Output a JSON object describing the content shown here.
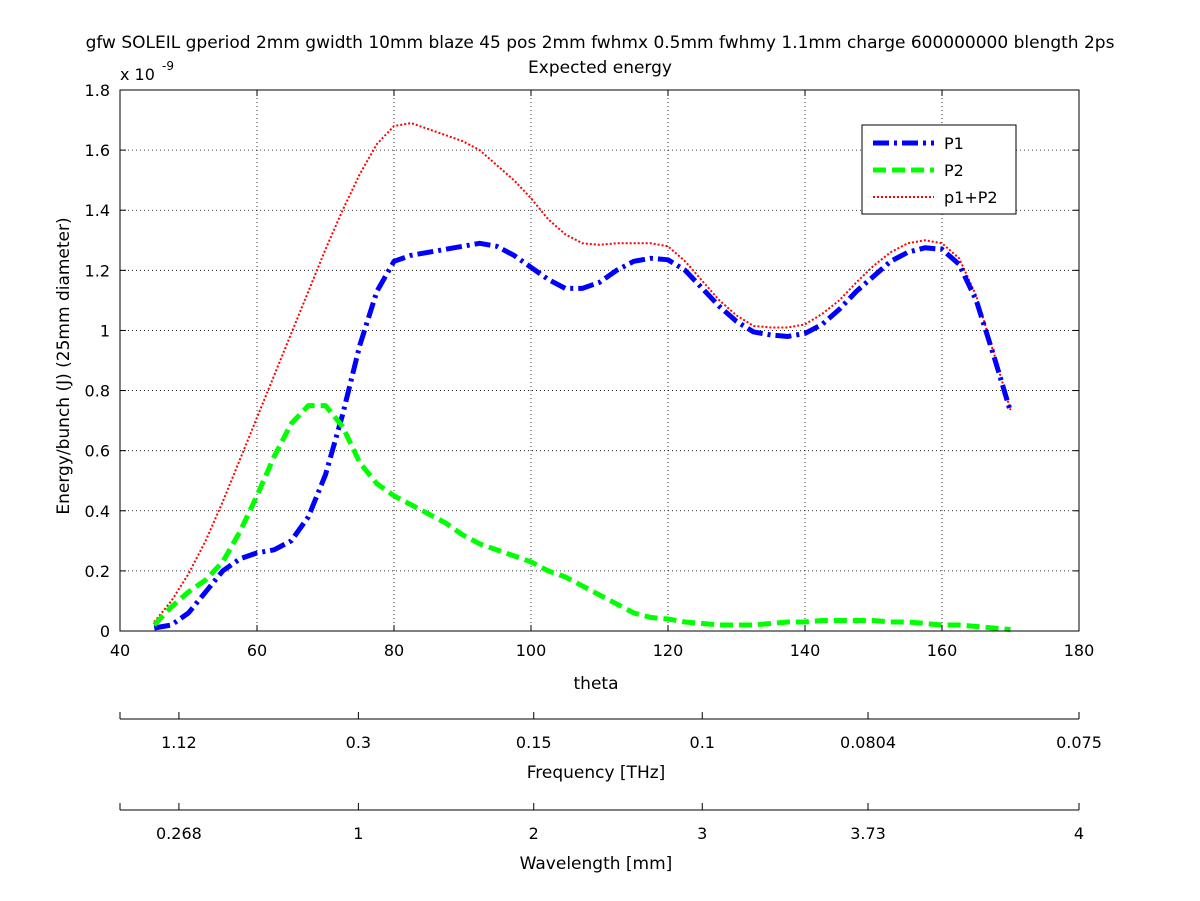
{
  "chart_data": {
    "type": "line",
    "title": "gfw SOLEIL gperiod 2mm gwidth 10mm blaze 45 pos 2mm fwhmx 0.5mm fwhmy 1.1mm charge 600000000 blength 2ps",
    "subtitle": "Expected energy",
    "xlabel": "theta",
    "ylabel": "Energy/bunch (J) (25mm diameter)",
    "y_exponent_label": "x 10",
    "y_exponent_power": "-9",
    "xlim": [
      40,
      180
    ],
    "ylim": [
      0,
      1.8
    ],
    "x_ticks": [
      40,
      60,
      80,
      100,
      120,
      140,
      160,
      180
    ],
    "x_tick_labels": [
      "40",
      "60",
      "80",
      "100",
      "120",
      "140",
      "160",
      "180"
    ],
    "y_ticks": [
      0,
      0.2,
      0.4,
      0.6,
      0.8,
      1,
      1.2,
      1.4,
      1.6,
      1.8
    ],
    "y_tick_labels": [
      "0",
      "0.2",
      "0.4",
      "0.6",
      "0.8",
      "1",
      "1.2",
      "1.4",
      "1.6",
      "1.8"
    ],
    "grid": true,
    "legend_position": "top-right",
    "x": [
      45,
      47.5,
      50,
      52.5,
      55,
      57.5,
      60,
      62.5,
      65,
      67.5,
      70,
      72.5,
      75,
      77.5,
      80,
      82.5,
      85,
      87.5,
      90,
      92.5,
      95,
      97.5,
      100,
      102.5,
      105,
      107.5,
      110,
      112.5,
      115,
      117.5,
      120,
      122.5,
      125,
      127.5,
      130,
      132.5,
      135,
      137.5,
      140,
      142.5,
      145,
      147.5,
      150,
      152.5,
      155,
      157.5,
      160,
      162.5,
      165,
      167.5,
      170
    ],
    "series": [
      {
        "name": "P1",
        "color": "#0000ff",
        "style": "dash-dot",
        "values": [
          0.01,
          0.02,
          0.06,
          0.13,
          0.2,
          0.24,
          0.26,
          0.27,
          0.3,
          0.38,
          0.52,
          0.72,
          0.95,
          1.13,
          1.23,
          1.25,
          1.26,
          1.27,
          1.28,
          1.29,
          1.28,
          1.25,
          1.21,
          1.17,
          1.14,
          1.14,
          1.16,
          1.2,
          1.23,
          1.24,
          1.235,
          1.2,
          1.14,
          1.08,
          1.03,
          0.995,
          0.985,
          0.98,
          0.99,
          1.02,
          1.07,
          1.13,
          1.18,
          1.23,
          1.26,
          1.275,
          1.27,
          1.22,
          1.1,
          0.92,
          0.73
        ]
      },
      {
        "name": "P2",
        "color": "#00ff00",
        "style": "dashed",
        "values": [
          0.02,
          0.08,
          0.13,
          0.17,
          0.23,
          0.33,
          0.45,
          0.58,
          0.69,
          0.75,
          0.75,
          0.68,
          0.56,
          0.49,
          0.45,
          0.42,
          0.39,
          0.36,
          0.32,
          0.29,
          0.27,
          0.25,
          0.23,
          0.2,
          0.18,
          0.15,
          0.12,
          0.09,
          0.06,
          0.045,
          0.04,
          0.03,
          0.025,
          0.02,
          0.02,
          0.02,
          0.025,
          0.03,
          0.03,
          0.035,
          0.035,
          0.035,
          0.035,
          0.03,
          0.03,
          0.025,
          0.02,
          0.02,
          0.015,
          0.01,
          0.005
        ]
      },
      {
        "name": "p1+P2",
        "color": "#ff0000",
        "style": "dotted",
        "values": [
          0.03,
          0.1,
          0.19,
          0.3,
          0.43,
          0.57,
          0.71,
          0.85,
          0.99,
          1.13,
          1.27,
          1.4,
          1.52,
          1.62,
          1.68,
          1.69,
          1.67,
          1.65,
          1.63,
          1.6,
          1.55,
          1.5,
          1.44,
          1.37,
          1.32,
          1.29,
          1.285,
          1.29,
          1.29,
          1.29,
          1.28,
          1.23,
          1.165,
          1.1,
          1.05,
          1.015,
          1.01,
          1.01,
          1.02,
          1.055,
          1.1,
          1.16,
          1.215,
          1.26,
          1.29,
          1.3,
          1.29,
          1.24,
          1.115,
          0.93,
          0.735
        ]
      }
    ],
    "secondary_axes": [
      {
        "label": "Frequency [THz]",
        "tick_labels": [
          "1.12",
          "0.3",
          "0.15",
          "0.1",
          "0.0804",
          "0.075"
        ],
        "tick_theta": [
          48.6,
          74.8,
          100.4,
          125,
          149.2,
          180
        ]
      },
      {
        "label": "Wavelength [mm]",
        "tick_labels": [
          "0.268",
          "1",
          "2",
          "3",
          "3.73",
          "4"
        ],
        "tick_theta": [
          48.6,
          74.8,
          100.4,
          125,
          149.2,
          180
        ]
      }
    ]
  }
}
